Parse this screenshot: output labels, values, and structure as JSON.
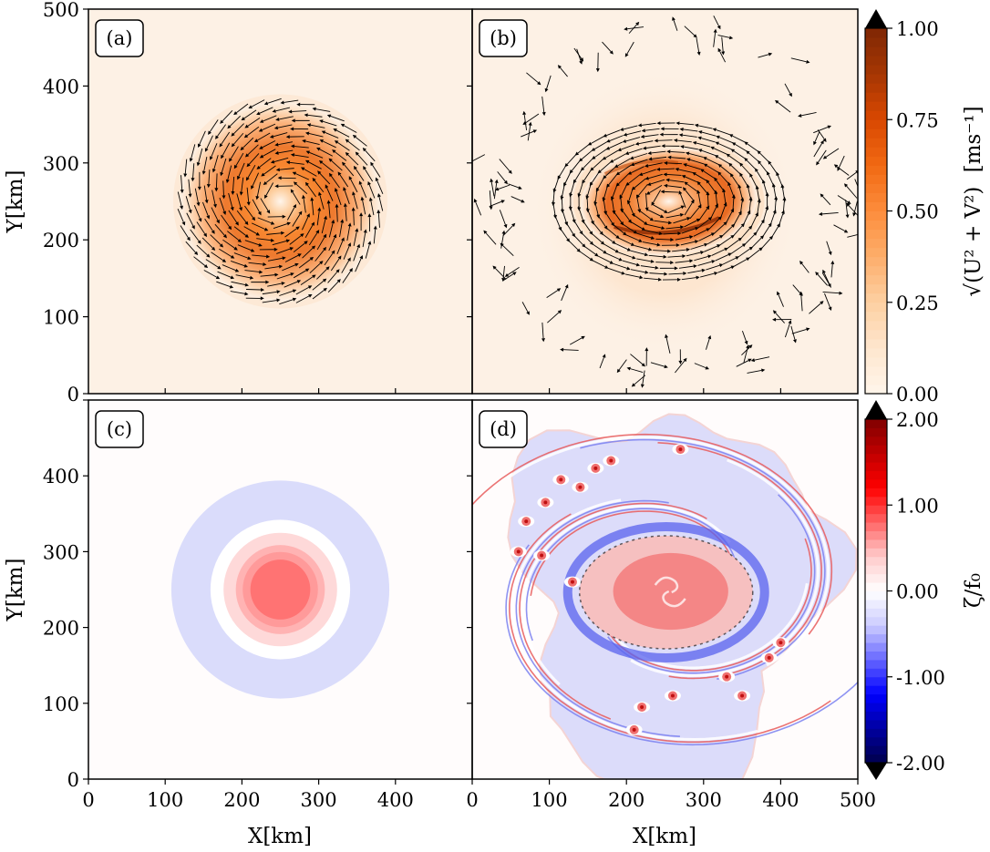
{
  "figure": {
    "panels": [
      {
        "id": "a",
        "label": "(a)",
        "field": "speed",
        "state": "initial"
      },
      {
        "id": "b",
        "label": "(b)",
        "field": "speed",
        "state": "evolved"
      },
      {
        "id": "c",
        "label": "(c)",
        "field": "vorticity",
        "state": "initial"
      },
      {
        "id": "d",
        "label": "(d)",
        "field": "vorticity",
        "state": "evolved"
      }
    ]
  },
  "chart_data": [
    {
      "type": "heatmap",
      "panel": "(a)",
      "title": "",
      "xlabel": "",
      "ylabel": "Y[km]",
      "xlim": [
        0,
        500
      ],
      "ylim": [
        0,
        500
      ],
      "xticks": [
        "0",
        "100",
        "200",
        "300",
        "400"
      ],
      "yticks": [
        "0",
        "100",
        "200",
        "300",
        "400",
        "500"
      ],
      "description": "Axisymmetric cyclonic vortex, speed contours with velocity quiver arrows (counterclockwise)",
      "vortex_center_km": [
        250,
        250
      ],
      "max_speed_radius_km": 60,
      "vortex_extent_radius_km": 130,
      "peak_speed": 0.65,
      "rotation": "counterclockwise",
      "quiver": true
    },
    {
      "type": "heatmap",
      "panel": "(b)",
      "title": "",
      "xlabel": "",
      "ylabel": "",
      "xlim": [
        0,
        500
      ],
      "ylim": [
        0,
        500
      ],
      "xticks": [],
      "yticks": [],
      "description": "Elliptical (elongated E-W) cyclonic vortex with filamented outer flow, speed contours with quiver arrows",
      "vortex_center_km": [
        255,
        250
      ],
      "semi_axes_km": [
        115,
        70
      ],
      "peak_speed": 0.8,
      "rotation": "counterclockwise",
      "quiver": true
    },
    {
      "type": "heatmap",
      "panel": "(c)",
      "title": "",
      "xlabel": "X[km]",
      "ylabel": "Y[km]",
      "xlim": [
        0,
        500
      ],
      "ylim": [
        0,
        500
      ],
      "xticks": [
        "0",
        "100",
        "200",
        "300",
        "400"
      ],
      "yticks": [
        "0",
        "100",
        "200",
        "300",
        "400"
      ],
      "description": "Shielded vortex: positive vorticity core surrounded by negative vorticity annulus",
      "vortex_center_km": [
        250,
        250
      ],
      "rings": [
        {
          "r_inner_km": 91,
          "r_outer_km": 142,
          "value": -0.2
        },
        {
          "r_inner_km": 74,
          "r_outer_km": 91,
          "value": 0.0
        },
        {
          "r_inner_km": 58,
          "r_outer_km": 74,
          "value": 0.2
        },
        {
          "r_inner_km": 49,
          "r_outer_km": 58,
          "value": 0.4
        },
        {
          "r_inner_km": 39,
          "r_outer_km": 49,
          "value": 0.5
        },
        {
          "r_inner_km": 0,
          "r_outer_km": 39,
          "value": 0.7
        }
      ]
    },
    {
      "type": "heatmap",
      "panel": "(d)",
      "title": "",
      "xlabel": "X[km]",
      "ylabel": "",
      "xlim": [
        0,
        500
      ],
      "ylim": [
        0,
        500
      ],
      "xticks": [
        "0",
        "100",
        "200",
        "300",
        "400",
        "500"
      ],
      "yticks": [],
      "description": "Turbulent vorticity field: elliptical positive core, negative-vorticity spiral band, filaments and small positive vortices",
      "vortex_center_km": [
        255,
        250
      ],
      "core_semi_axes_km": [
        75,
        50
      ],
      "small_vortices_km": [
        [
          270,
          435
        ],
        [
          160,
          410
        ],
        [
          115,
          395
        ],
        [
          140,
          385
        ],
        [
          95,
          365
        ],
        [
          70,
          340
        ],
        [
          60,
          300
        ],
        [
          130,
          260
        ],
        [
          90,
          295
        ],
        [
          180,
          420
        ],
        [
          400,
          180
        ],
        [
          385,
          160
        ],
        [
          350,
          110
        ],
        [
          330,
          135
        ],
        [
          260,
          110
        ],
        [
          220,
          95
        ],
        [
          210,
          65
        ]
      ]
    }
  ],
  "colorbars": [
    {
      "id": "speed",
      "label_math": "√(U² + V²)",
      "label_units": "[ms⁻¹]",
      "ticks": [
        "0.00",
        "0.25",
        "0.50",
        "0.75",
        "1.00"
      ],
      "range": [
        0,
        1
      ],
      "extend": "max",
      "colormap": "Oranges",
      "colors": [
        "#fff5eb",
        "#fee6ce",
        "#fdd0a2",
        "#fdae6b",
        "#fd8d3c",
        "#f16913",
        "#d94801",
        "#a63603",
        "#7f2704"
      ]
    },
    {
      "id": "vorticity",
      "label": "ζ/f₀",
      "ticks": [
        "-2.00",
        "-1.00",
        "0.00",
        "1.00",
        "2.00"
      ],
      "range": [
        -2,
        2
      ],
      "extend": "both",
      "colormap": "seismic",
      "colors": [
        "#00004c",
        "#0000a0",
        "#0000ff",
        "#6666ff",
        "#ccccff",
        "#ffffff",
        "#ffcccc",
        "#ff6666",
        "#ff0000",
        "#c00000",
        "#800000"
      ]
    }
  ]
}
